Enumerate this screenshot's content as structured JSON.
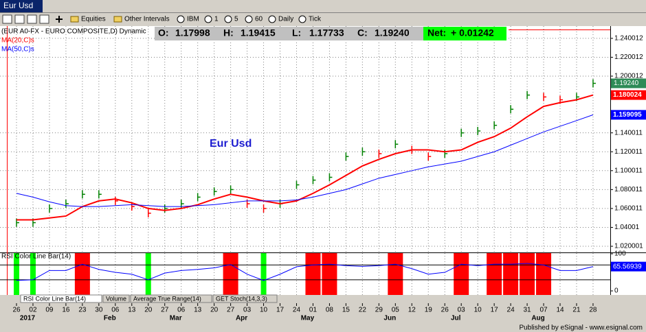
{
  "window": {
    "title": "Eur Usd"
  },
  "toolbar": {
    "items": [
      "Equities",
      "Other Intervals",
      "IBM",
      "1",
      "5",
      "60",
      "Daily",
      "Tick"
    ]
  },
  "quote": {
    "items": [
      {
        "label": "O:",
        "value": "1.17998"
      },
      {
        "label": "H:",
        "value": "1.19415"
      },
      {
        "label": "L:",
        "value": "1.17733"
      },
      {
        "label": "C:",
        "value": "1.19240"
      }
    ],
    "net_label": "Net:",
    "net_value": "+ 0.01242"
  },
  "tabs": [
    "RSI Color Line Bar(14)",
    "Volume",
    "Average True Range(14)",
    "GET Stoch(14,3,3)"
  ],
  "footer": "Published by eSignal - www.esignal.com",
  "chart_data": [
    {
      "type": "line",
      "title": "Eur Usd",
      "categories": [
        "26",
        "02",
        "09",
        "16",
        "23",
        "30",
        "06",
        "13",
        "20",
        "27",
        "06",
        "13",
        "20",
        "27",
        "03",
        "10",
        "17",
        "24",
        "01",
        "08",
        "15",
        "22",
        "29",
        "05",
        "12",
        "19",
        "26",
        "03",
        "10",
        "17",
        "24",
        "31",
        "07",
        "14",
        "21",
        "28"
      ],
      "months": [
        "2017",
        "Feb",
        "Mar",
        "Apr",
        "May",
        "Jun",
        "Jul",
        "Aug"
      ],
      "series": [
        {
          "name": "(EUR A0-FX - EURO COMPOSITE,D) Dynamic",
          "color": "#008000",
          "down_color": "#ff0000",
          "values": [
            1.045,
            1.045,
            1.06,
            1.065,
            1.075,
            1.075,
            1.068,
            1.062,
            1.055,
            1.06,
            1.065,
            1.072,
            1.078,
            1.08,
            1.065,
            1.06,
            1.065,
            1.085,
            1.09,
            1.093,
            1.115,
            1.12,
            1.118,
            1.128,
            1.122,
            1.115,
            1.118,
            1.14,
            1.142,
            1.148,
            1.165,
            1.18,
            1.178,
            1.175,
            1.178,
            1.1924
          ]
        },
        {
          "name": "MA(20,C)s",
          "color": "#ff0000",
          "values": [
            1.048,
            1.048,
            1.05,
            1.052,
            1.062,
            1.068,
            1.07,
            1.066,
            1.06,
            1.058,
            1.06,
            1.064,
            1.07,
            1.075,
            1.072,
            1.068,
            1.065,
            1.068,
            1.076,
            1.085,
            1.095,
            1.105,
            1.112,
            1.118,
            1.122,
            1.122,
            1.12,
            1.122,
            1.13,
            1.136,
            1.145,
            1.157,
            1.168,
            1.172,
            1.175,
            1.180024
          ]
        },
        {
          "name": "MA(50,C)s",
          "color": "#0000ff",
          "values": [
            1.076,
            1.072,
            1.067,
            1.063,
            1.062,
            1.062,
            1.063,
            1.064,
            1.063,
            1.062,
            1.062,
            1.063,
            1.064,
            1.066,
            1.068,
            1.068,
            1.068,
            1.069,
            1.072,
            1.076,
            1.08,
            1.086,
            1.092,
            1.096,
            1.1,
            1.104,
            1.107,
            1.11,
            1.115,
            1.12,
            1.127,
            1.134,
            1.141,
            1.147,
            1.153,
            1.159095
          ]
        }
      ],
      "ylim": [
        1.0135,
        1.253
      ],
      "yticks": [
        1.240012,
        1.220012,
        1.200012,
        1.140011,
        1.120011,
        1.100011,
        1.080011,
        1.060011,
        1.04001,
        1.020001
      ],
      "grid": true
    },
    {
      "type": "line",
      "title": "RSI Color Line Bar(14)",
      "color": "#0000ff",
      "up_color": "#ff0000",
      "down_color": "#00ff00",
      "values": [
        28,
        30,
        55,
        55,
        72,
        58,
        50,
        45,
        30,
        48,
        55,
        58,
        62,
        71,
        45,
        28,
        45,
        65,
        70,
        72,
        68,
        66,
        68,
        72,
        60,
        45,
        50,
        72,
        68,
        72,
        72,
        74,
        70,
        55,
        55,
        65.56939
      ],
      "levels": [
        70,
        30
      ],
      "ylim": [
        -11,
        103.7
      ],
      "yticks": [
        100,
        0
      ]
    }
  ]
}
